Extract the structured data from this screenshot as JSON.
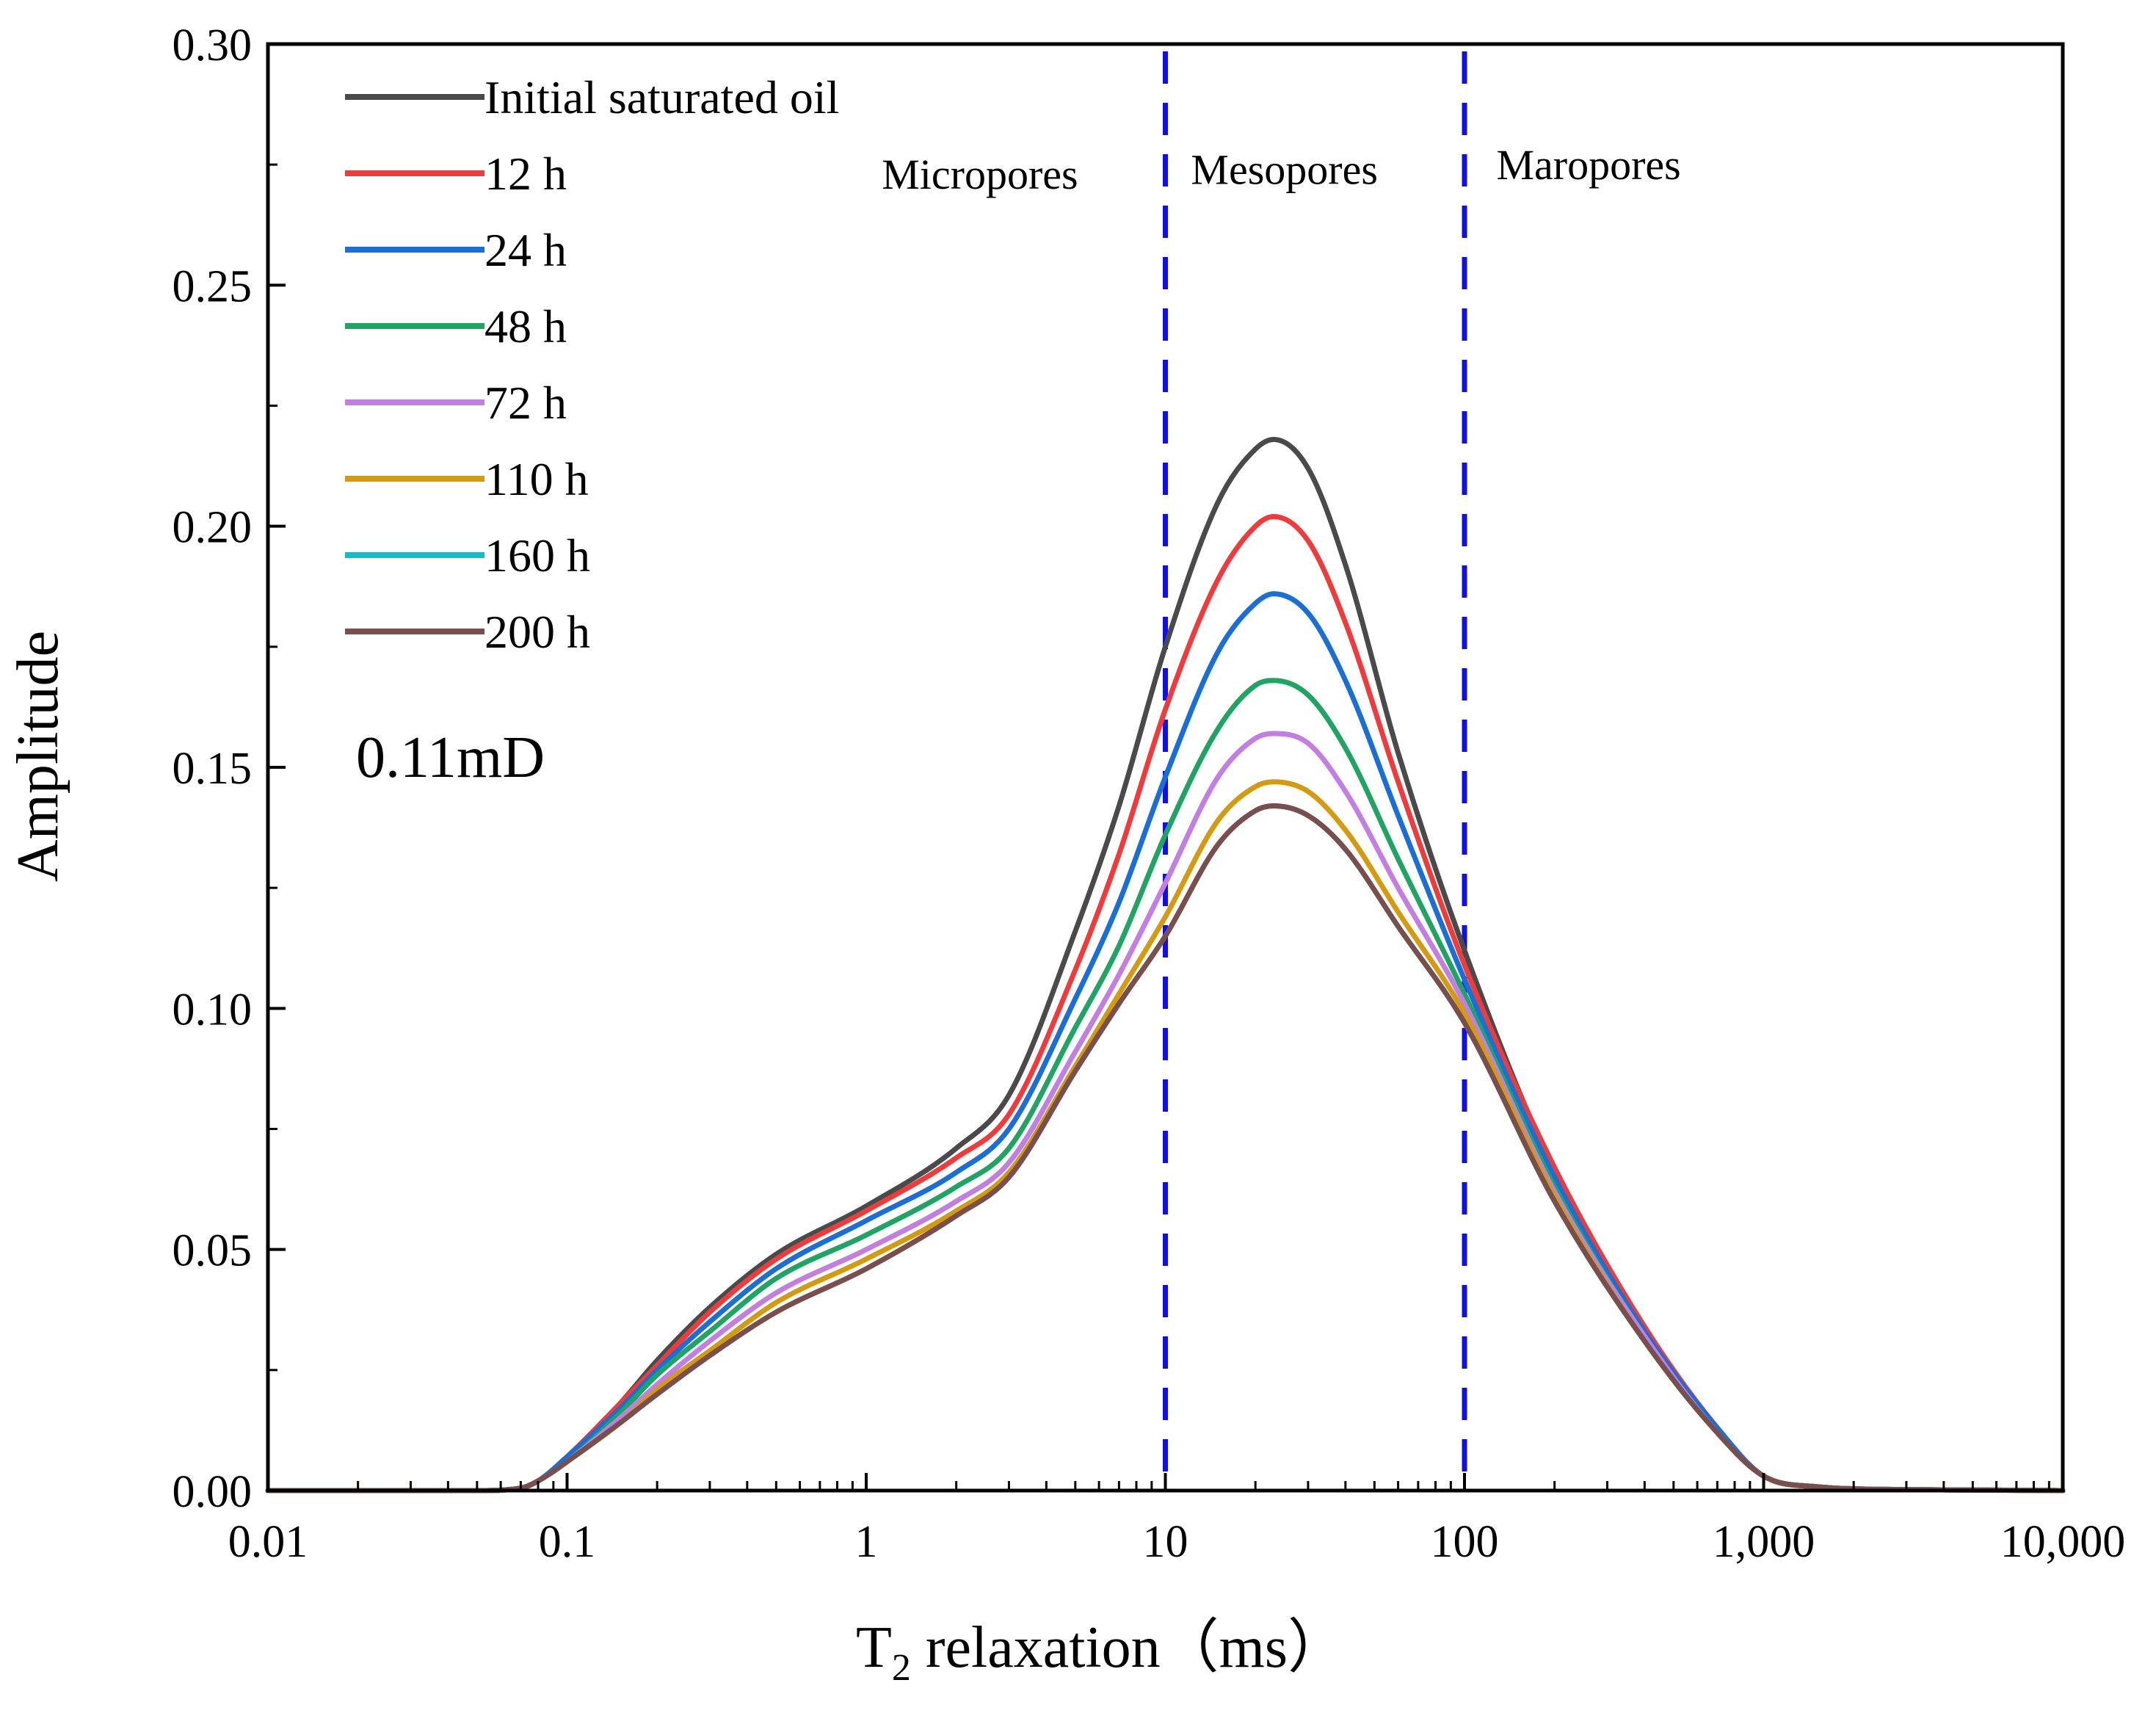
{
  "chart_data": {
    "type": "line",
    "xscale": "log",
    "xlabel_main": "T",
    "xlabel_sub": "2",
    "xlabel_rest": " relaxation（ms）",
    "ylabel": "Amplitude",
    "xlim": [
      0.01,
      10000
    ],
    "ylim": [
      0,
      0.3
    ],
    "xticks": [
      {
        "value": 0.01,
        "label": "0.01"
      },
      {
        "value": 0.1,
        "label": "0.1"
      },
      {
        "value": 1,
        "label": "1"
      },
      {
        "value": 10,
        "label": "10"
      },
      {
        "value": 100,
        "label": "100"
      },
      {
        "value": 1000,
        "label": "1,000"
      },
      {
        "value": 10000,
        "label": "10,000"
      }
    ],
    "yticks": [
      {
        "value": 0.0,
        "label": "0.00"
      },
      {
        "value": 0.05,
        "label": "0.05"
      },
      {
        "value": 0.1,
        "label": "0.10"
      },
      {
        "value": 0.15,
        "label": "0.15"
      },
      {
        "value": 0.2,
        "label": "0.20"
      },
      {
        "value": 0.25,
        "label": "0.25"
      },
      {
        "value": 0.3,
        "label": "0.30"
      }
    ],
    "yminor_step": 0.025,
    "boundaries": [
      10,
      100
    ],
    "regions": [
      {
        "label": "Micropores",
        "x": 2.4,
        "y": 0.27
      },
      {
        "label": "Mesopores",
        "x": 25,
        "y": 0.271
      },
      {
        "label": "Maropores",
        "x": 260,
        "y": 0.272
      }
    ],
    "annotation": "0.11mD",
    "x_samples": [
      0.01,
      0.05,
      0.07,
      0.08,
      0.1,
      0.15,
      0.2,
      0.3,
      0.5,
      1,
      2,
      3,
      5,
      7,
      10,
      15,
      20,
      23,
      30,
      40,
      60,
      100,
      200,
      400,
      700,
      1000,
      1500,
      3000,
      10000
    ],
    "series": [
      {
        "name": "Initial saturated oil",
        "color": "#4a4a4a",
        "values": [
          0,
          0,
          0.0005,
          0.002,
          0.007,
          0.018,
          0.027,
          0.038,
          0.049,
          0.059,
          0.071,
          0.082,
          0.116,
          0.142,
          0.175,
          0.205,
          0.216,
          0.218,
          0.212,
          0.192,
          0.153,
          0.112,
          0.066,
          0.033,
          0.013,
          0.003,
          0.0008,
          0.0002,
          0
        ]
      },
      {
        "name": "12 h",
        "color": "#ef3b3b",
        "values": [
          0,
          0,
          0.0005,
          0.002,
          0.007,
          0.018,
          0.026,
          0.037,
          0.048,
          0.058,
          0.069,
          0.078,
          0.108,
          0.132,
          0.162,
          0.189,
          0.2,
          0.202,
          0.197,
          0.18,
          0.147,
          0.109,
          0.067,
          0.034,
          0.013,
          0.003,
          0.0008,
          0.0002,
          0
        ]
      },
      {
        "name": "24 h",
        "color": "#1a6fd6",
        "values": [
          0,
          0,
          0.0005,
          0.002,
          0.007,
          0.017,
          0.025,
          0.035,
          0.046,
          0.056,
          0.066,
          0.075,
          0.102,
          0.122,
          0.148,
          0.174,
          0.184,
          0.186,
          0.182,
          0.168,
          0.14,
          0.106,
          0.065,
          0.033,
          0.013,
          0.003,
          0.0008,
          0.0002,
          0
        ]
      },
      {
        "name": "48 h",
        "color": "#1fa463",
        "values": [
          0,
          0,
          0.0005,
          0.002,
          0.006,
          0.016,
          0.024,
          0.033,
          0.044,
          0.053,
          0.063,
          0.071,
          0.096,
          0.113,
          0.136,
          0.158,
          0.167,
          0.168,
          0.165,
          0.154,
          0.131,
          0.103,
          0.063,
          0.032,
          0.012,
          0.003,
          0.0008,
          0.0002,
          0
        ]
      },
      {
        "name": "72 h",
        "color": "#c27ee0",
        "values": [
          0,
          0,
          0.0005,
          0.002,
          0.006,
          0.015,
          0.022,
          0.031,
          0.041,
          0.05,
          0.06,
          0.068,
          0.091,
          0.107,
          0.126,
          0.148,
          0.156,
          0.157,
          0.155,
          0.145,
          0.125,
          0.101,
          0.062,
          0.032,
          0.012,
          0.003,
          0.0008,
          0.0002,
          0
        ]
      },
      {
        "name": "110 h",
        "color": "#d49a10",
        "values": [
          0,
          0,
          0.0005,
          0.002,
          0.006,
          0.014,
          0.021,
          0.029,
          0.039,
          0.048,
          0.058,
          0.066,
          0.088,
          0.103,
          0.119,
          0.139,
          0.146,
          0.147,
          0.145,
          0.137,
          0.12,
          0.099,
          0.061,
          0.031,
          0.012,
          0.003,
          0.0008,
          0.0002,
          0
        ]
      },
      {
        "name": "160 h",
        "color": "#19b9c6",
        "values": [
          0,
          0,
          0.0005,
          0.002,
          0.006,
          0.014,
          0.02,
          0.028,
          0.037,
          0.046,
          0.057,
          0.065,
          0.087,
          0.101,
          0.115,
          0.134,
          0.141,
          0.142,
          0.14,
          0.133,
          0.117,
          0.097,
          0.06,
          0.031,
          0.012,
          0.003,
          0.0008,
          0.0002,
          0
        ]
      },
      {
        "name": "200 h",
        "color": "#7b4e4e",
        "values": [
          0,
          0,
          0.0005,
          0.002,
          0.006,
          0.014,
          0.02,
          0.028,
          0.037,
          0.046,
          0.057,
          0.065,
          0.087,
          0.101,
          0.115,
          0.134,
          0.141,
          0.142,
          0.14,
          0.133,
          0.117,
          0.097,
          0.06,
          0.031,
          0.012,
          0.003,
          0.0008,
          0.0002,
          0
        ]
      }
    ],
    "boundary_color": "#1010e0",
    "grid": false,
    "legend_position": "top-left"
  }
}
